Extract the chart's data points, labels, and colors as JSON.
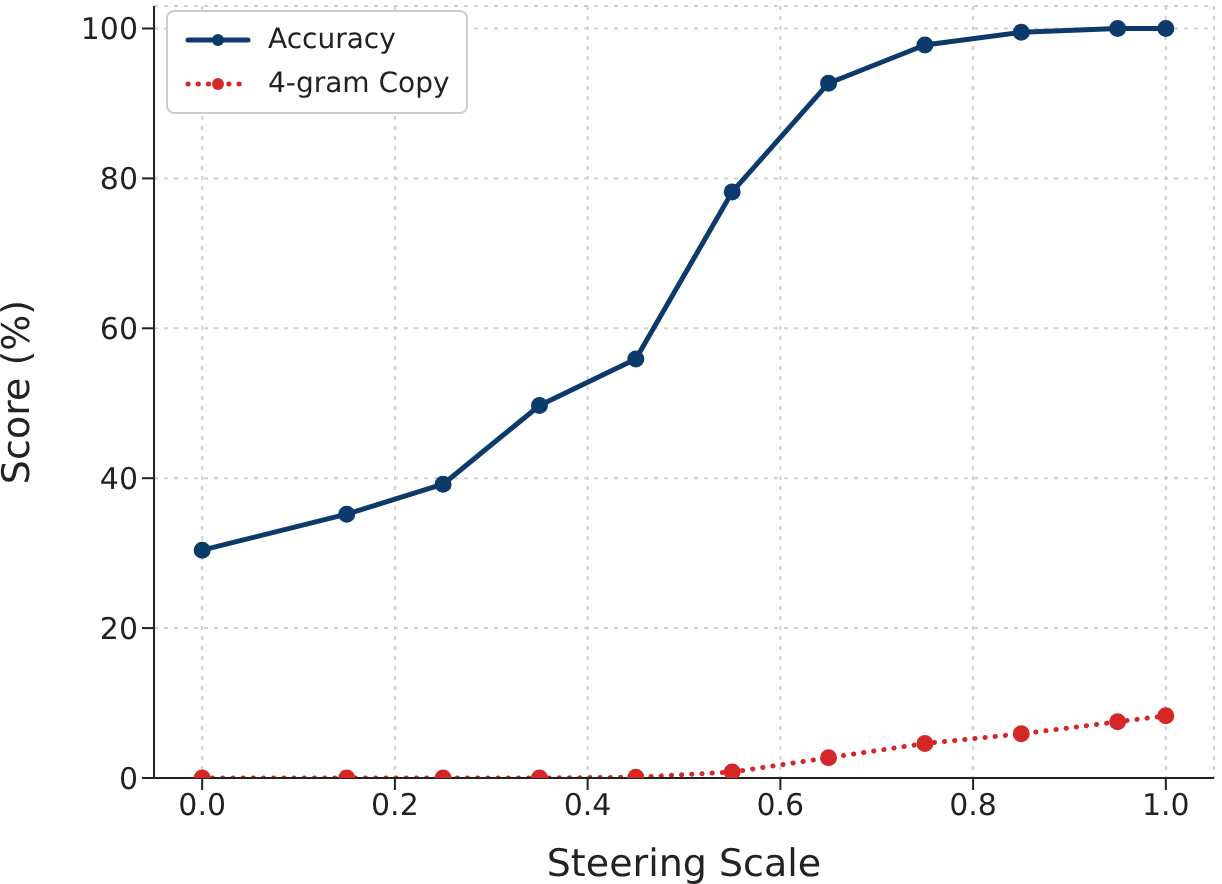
{
  "chart_data": {
    "type": "line",
    "xlabel": "Steering Scale",
    "ylabel": "Score (%)",
    "x": [
      0,
      0.15,
      0.25,
      0.35,
      0.45,
      0.55,
      0.65,
      0.75,
      0.85,
      0.95,
      1.0
    ],
    "series": [
      {
        "name": "Accuracy",
        "color": "#0b3a6b",
        "line_style": "solid",
        "values": [
          30.4,
          35.2,
          39.2,
          49.7,
          55.9,
          78.2,
          92.7,
          97.8,
          99.5,
          100,
          100
        ]
      },
      {
        "name": "4-gram Copy",
        "color": "#d62728",
        "line_style": "dotted",
        "values": [
          0,
          0,
          0,
          0,
          0.1,
          0.8,
          2.7,
          4.6,
          5.9,
          7.5,
          8.3
        ]
      }
    ],
    "xlim": [
      -0.05,
      1.05
    ],
    "xticks": [
      {
        "value": 0,
        "label": "0.0"
      },
      0.2,
      0.4,
      0.6,
      0.8,
      {
        "value": 1,
        "label": "1.0"
      }
    ],
    "ylim": [
      0,
      103
    ],
    "yticks": [
      0,
      20,
      40,
      60,
      80,
      100
    ],
    "grid": true,
    "legend": "top left",
    "marker": "circle"
  }
}
